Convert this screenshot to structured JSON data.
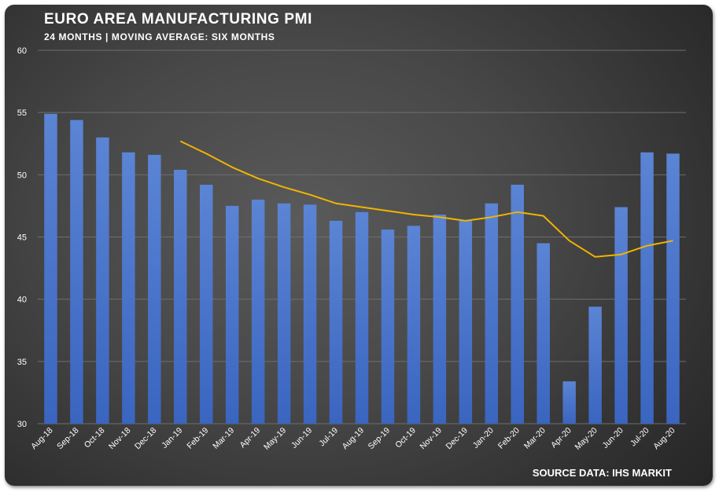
{
  "chart_data": {
    "type": "bar",
    "title": "EURO AREA MANUFACTURING PMI",
    "subtitle": "24 MONTHS | MOVING AVERAGE: SIX MONTHS",
    "source": "SOURCE DATA: IHS MARKIT",
    "categories": [
      "Aug-18",
      "Sep-18",
      "Oct-18",
      "Nov-18",
      "Dec-18",
      "Jan-19",
      "Feb-19",
      "Mar-19",
      "Apr-19",
      "May-19",
      "Jun-19",
      "Jul-19",
      "Aug-19",
      "Sep-19",
      "Oct-19",
      "Nov-19",
      "Dec-19",
      "Jan-20",
      "Feb-20",
      "Mar-20",
      "Apr-20",
      "May-20",
      "Jun-20",
      "Jul-20",
      "Aug-20"
    ],
    "series": [
      {
        "type": "bar",
        "color": "#4472c4",
        "values": [
          54.9,
          54.4,
          53.0,
          51.8,
          51.6,
          50.4,
          49.2,
          47.5,
          48.0,
          47.7,
          47.6,
          46.3,
          47.0,
          45.6,
          45.9,
          46.8,
          46.3,
          47.7,
          49.2,
          44.5,
          33.4,
          39.4,
          47.4,
          51.8,
          51.7
        ]
      },
      {
        "type": "line",
        "color": "#f0b400",
        "values": [
          null,
          null,
          null,
          null,
          null,
          52.7,
          51.7,
          50.6,
          49.7,
          49.0,
          48.4,
          47.7,
          47.4,
          47.1,
          46.8,
          46.6,
          46.3,
          46.6,
          47.0,
          46.7,
          44.7,
          43.4,
          43.6,
          44.3,
          44.7
        ]
      }
    ],
    "ylim": [
      30,
      60
    ],
    "yticks": [
      30,
      35,
      40,
      45,
      50,
      55,
      60
    ],
    "grid": true
  }
}
